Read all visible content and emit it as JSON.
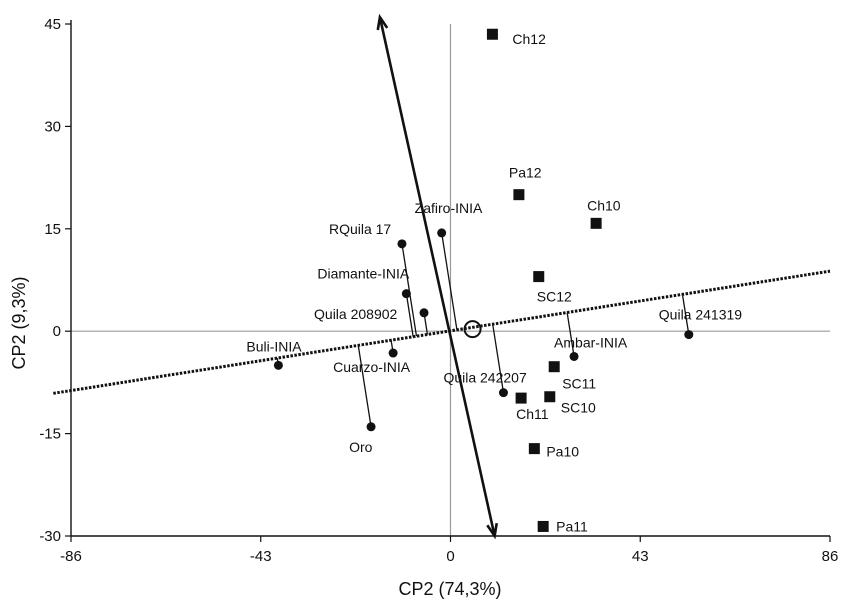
{
  "chart_data": {
    "type": "scatter",
    "xlabel": "CP2 (74,3%)",
    "ylabel": "CP2 (9,3%)",
    "xlim": [
      -86,
      86
    ],
    "ylim": [
      -30,
      45
    ],
    "xticks": [
      -86,
      -43,
      0,
      43,
      86
    ],
    "yticks": [
      -30,
      -15,
      0,
      15,
      30,
      45
    ],
    "grid": false,
    "series": [
      {
        "marker": "circle",
        "points": [
          {
            "label": "Buli-INIA",
            "x": -39,
            "y": -5.0
          },
          {
            "label": "Oro",
            "x": -18,
            "y": -14.0
          },
          {
            "label": "Cuarzo-INIA",
            "x": -13,
            "y": -3.2
          },
          {
            "label": "Diamante-INIA",
            "x": -10,
            "y": 5.5
          },
          {
            "label": "RQuila 17",
            "x": -11,
            "y": 12.8
          },
          {
            "label": "Quila 208902",
            "x": -6,
            "y": 2.7
          },
          {
            "label": "Zafiro-INIA",
            "x": -2,
            "y": 14.4
          },
          {
            "label": "Quila 242207",
            "x": 12,
            "y": -9.0
          },
          {
            "label": "Ambar-INIA",
            "x": 28,
            "y": -3.7
          },
          {
            "label": "Quila 241319",
            "x": 54,
            "y": -0.5
          }
        ]
      },
      {
        "marker": "square",
        "points": [
          {
            "label": "Ch12",
            "x": 9.5,
            "y": 43.5
          },
          {
            "label": "Pa12",
            "x": 15.5,
            "y": 20.0
          },
          {
            "label": "Ch10",
            "x": 33,
            "y": 15.8
          },
          {
            "label": "SC12",
            "x": 20,
            "y": 8.0
          },
          {
            "label": "SC11",
            "x": 23.5,
            "y": -5.2
          },
          {
            "label": "Ch11",
            "x": 16,
            "y": -9.8
          },
          {
            "label": "SC10",
            "x": 22.5,
            "y": -9.6
          },
          {
            "label": "Pa10",
            "x": 19,
            "y": -17.2
          },
          {
            "label": "Pa11",
            "x": 21,
            "y": -28.6
          }
        ]
      }
    ],
    "axis_arrow": {
      "from": [
        10,
        -30
      ],
      "to": [
        -16,
        46
      ]
    },
    "dotted_line": {
      "from": [
        -90,
        -9.1
      ],
      "to": [
        86,
        8.8
      ]
    },
    "origin_circle": {
      "x": 5,
      "y": 0.3
    }
  }
}
